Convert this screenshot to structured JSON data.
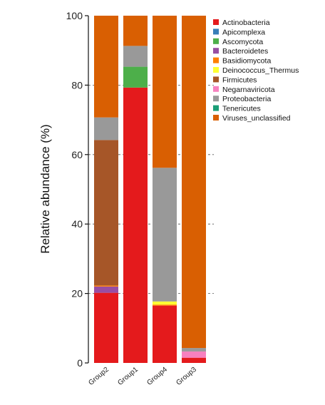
{
  "chart_data": {
    "type": "bar",
    "stacked": true,
    "title": "",
    "xlabel": "",
    "ylabel": "Relative abundance (%)",
    "ylim": [
      0,
      100
    ],
    "yticks": [
      0,
      20,
      40,
      60,
      80,
      100
    ],
    "grid": "dashed horizontal",
    "legend_position": "right",
    "categories": [
      "Group2",
      "Group1",
      "Group4",
      "Group3"
    ],
    "series": [
      {
        "name": "Actinobacteria",
        "color": "#e41a1c",
        "values": [
          20.2,
          79.3,
          16.5,
          1.5
        ]
      },
      {
        "name": "Apicomplexa",
        "color": "#377eb8",
        "values": [
          0,
          0,
          0,
          0
        ]
      },
      {
        "name": "Ascomycota",
        "color": "#4daf4a",
        "values": [
          0,
          6.0,
          0,
          0
        ]
      },
      {
        "name": "Bacteroidetes",
        "color": "#984ea3",
        "values": [
          1.8,
          0,
          0,
          0
        ]
      },
      {
        "name": "Basidiomycota",
        "color": "#ff7f00",
        "values": [
          0.3,
          0,
          0.3,
          0
        ]
      },
      {
        "name": "Deinococcus_Thermus",
        "color": "#ffff33",
        "values": [
          0,
          0,
          0.9,
          0
        ]
      },
      {
        "name": "Firmicutes",
        "color": "#a65628",
        "values": [
          41.9,
          0,
          0,
          0
        ]
      },
      {
        "name": "Negarnaviricota",
        "color": "#f781bf",
        "values": [
          0,
          0,
          0,
          1.8
        ]
      },
      {
        "name": "Proteobacteria",
        "color": "#999999",
        "values": [
          6.5,
          6.0,
          38.5,
          1.0
        ]
      },
      {
        "name": "Tenericutes",
        "color": "#1b9e77",
        "values": [
          0,
          0,
          0,
          0
        ]
      },
      {
        "name": "Viruses_unclassified",
        "color": "#d95f02",
        "values": [
          29.3,
          8.7,
          43.8,
          95.7
        ]
      }
    ]
  }
}
